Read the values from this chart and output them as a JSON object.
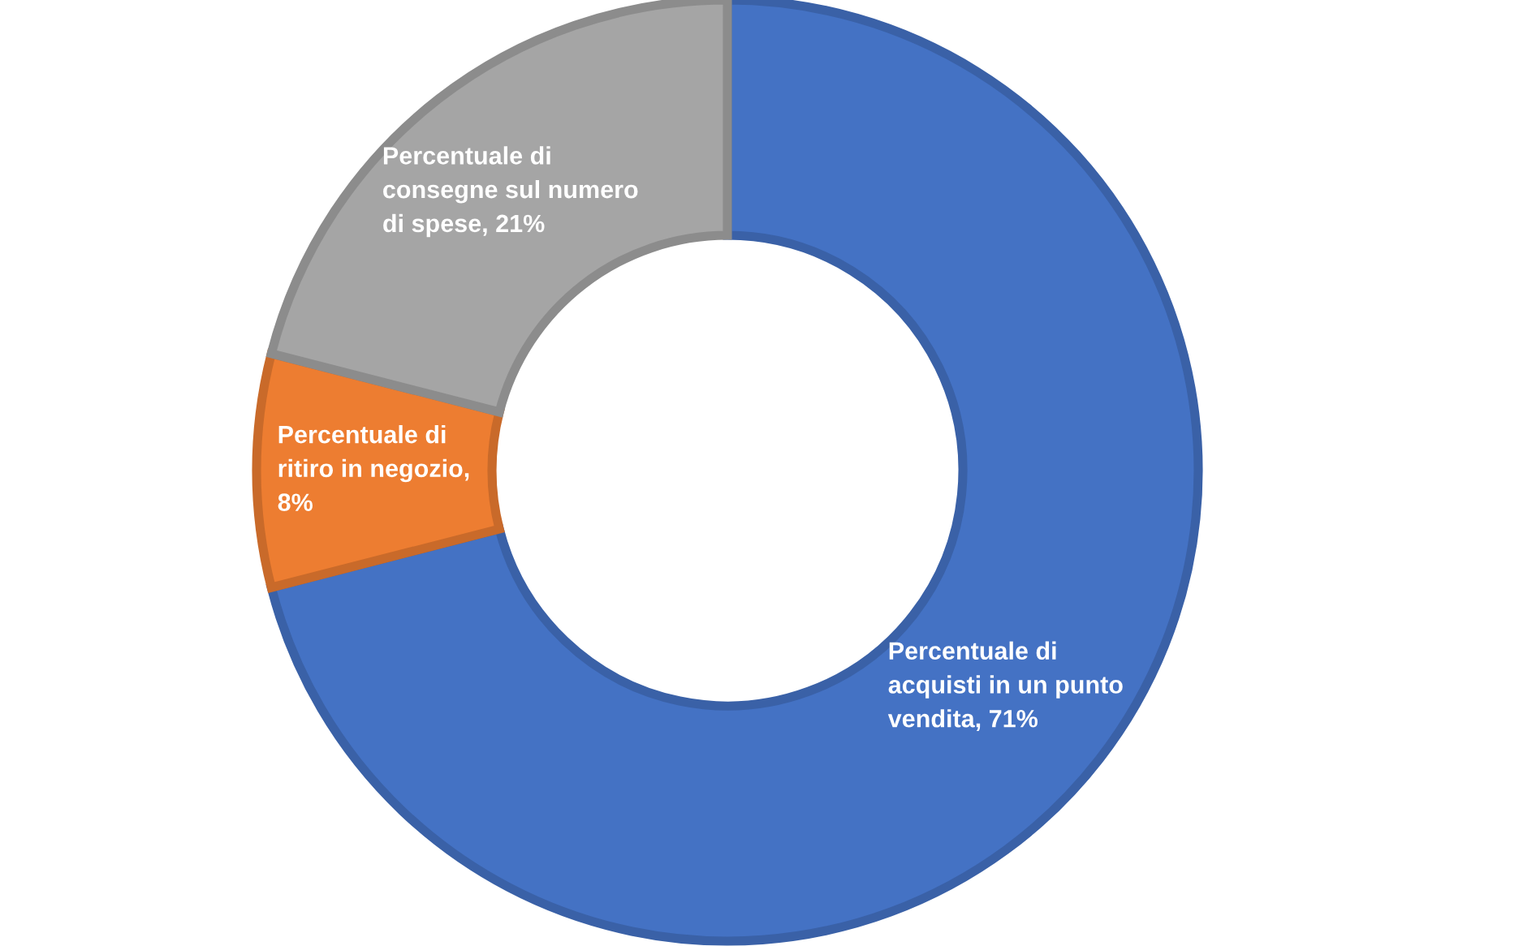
{
  "chart_data": {
    "type": "donut",
    "categories": [
      "Percentuale di acquisti in un punto vendita, 71%",
      "Percentuale di ritiro in negozio, 8%",
      "Percentuale di consegne sul numero di spese, 21%"
    ],
    "values": [
      71,
      8,
      21
    ],
    "colors": [
      "#4472c4",
      "#ed7d31",
      "#a5a5a5"
    ],
    "legend": false
  }
}
